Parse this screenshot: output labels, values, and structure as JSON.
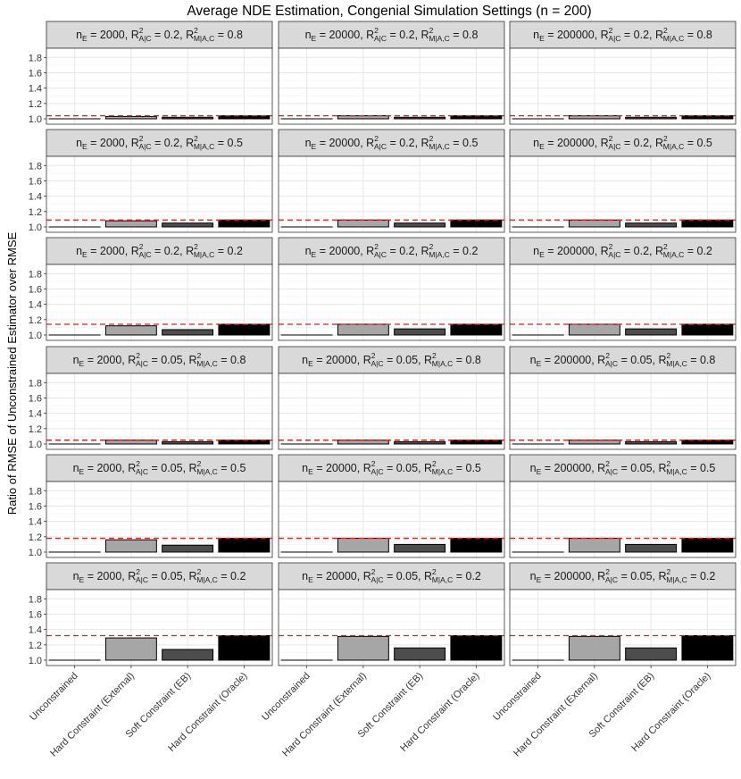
{
  "chart_data": {
    "type": "bar",
    "title": "Average NDE Estimation, Congenial Simulation Settings (n = 200)",
    "ylabel": "Ratio of RMSE of Unconstrained Estimator over RMSE",
    "xlabel": "",
    "categories": [
      "Unconstrained",
      "Hard Constraint (External)",
      "Soft Constraint (EB)",
      "Hard Constraint (Oracle)"
    ],
    "bar_colors": [
      "#ffffff",
      "#a6a6a6",
      "#4d4d4d",
      "#000000"
    ],
    "reference_line_color": "#e41a1c",
    "ylim": [
      0.93,
      1.92
    ],
    "yticks": [
      "1.0",
      "1.2",
      "1.4",
      "1.6",
      "1.8"
    ],
    "ytick_values": [
      1.0,
      1.2,
      1.4,
      1.6,
      1.8
    ],
    "grid": true,
    "strip_parts": {
      "n": "n",
      "n_sub": "E",
      "r": "R",
      "r_sup": "2",
      "sub_ac": "A|C",
      "sub_mac": "M|A,C",
      "eq": " = ",
      "sep": ", "
    },
    "panels": [
      {
        "row": 0,
        "col": 0,
        "nE": "2000",
        "r2_ac": "0.2",
        "r2_mac": "0.8",
        "values": [
          1.0,
          1.03,
          1.02,
          1.04
        ],
        "ref_line": 1.04
      },
      {
        "row": 0,
        "col": 1,
        "nE": "20000",
        "r2_ac": "0.2",
        "r2_mac": "0.8",
        "values": [
          1.0,
          1.04,
          1.02,
          1.04
        ],
        "ref_line": 1.04
      },
      {
        "row": 0,
        "col": 2,
        "nE": "200000",
        "r2_ac": "0.2",
        "r2_mac": "0.8",
        "values": [
          1.0,
          1.04,
          1.02,
          1.04
        ],
        "ref_line": 1.04
      },
      {
        "row": 1,
        "col": 0,
        "nE": "2000",
        "r2_ac": "0.2",
        "r2_mac": "0.5",
        "values": [
          1.0,
          1.08,
          1.05,
          1.09
        ],
        "ref_line": 1.09
      },
      {
        "row": 1,
        "col": 1,
        "nE": "20000",
        "r2_ac": "0.2",
        "r2_mac": "0.5",
        "values": [
          1.0,
          1.09,
          1.05,
          1.09
        ],
        "ref_line": 1.09
      },
      {
        "row": 1,
        "col": 2,
        "nE": "200000",
        "r2_ac": "0.2",
        "r2_mac": "0.5",
        "values": [
          1.0,
          1.09,
          1.05,
          1.09
        ],
        "ref_line": 1.09
      },
      {
        "row": 2,
        "col": 0,
        "nE": "2000",
        "r2_ac": "0.2",
        "r2_mac": "0.2",
        "values": [
          1.0,
          1.12,
          1.07,
          1.14
        ],
        "ref_line": 1.14
      },
      {
        "row": 2,
        "col": 1,
        "nE": "20000",
        "r2_ac": "0.2",
        "r2_mac": "0.2",
        "values": [
          1.0,
          1.14,
          1.08,
          1.14
        ],
        "ref_line": 1.14
      },
      {
        "row": 2,
        "col": 2,
        "nE": "200000",
        "r2_ac": "0.2",
        "r2_mac": "0.2",
        "values": [
          1.0,
          1.14,
          1.08,
          1.14
        ],
        "ref_line": 1.14
      },
      {
        "row": 3,
        "col": 0,
        "nE": "2000",
        "r2_ac": "0.05",
        "r2_mac": "0.8",
        "values": [
          1.0,
          1.05,
          1.03,
          1.05
        ],
        "ref_line": 1.05
      },
      {
        "row": 3,
        "col": 1,
        "nE": "20000",
        "r2_ac": "0.05",
        "r2_mac": "0.8",
        "values": [
          1.0,
          1.05,
          1.03,
          1.05
        ],
        "ref_line": 1.05
      },
      {
        "row": 3,
        "col": 2,
        "nE": "200000",
        "r2_ac": "0.05",
        "r2_mac": "0.8",
        "values": [
          1.0,
          1.05,
          1.03,
          1.05
        ],
        "ref_line": 1.05
      },
      {
        "row": 4,
        "col": 0,
        "nE": "2000",
        "r2_ac": "0.05",
        "r2_mac": "0.5",
        "values": [
          1.0,
          1.16,
          1.09,
          1.18
        ],
        "ref_line": 1.18
      },
      {
        "row": 4,
        "col": 1,
        "nE": "20000",
        "r2_ac": "0.05",
        "r2_mac": "0.5",
        "values": [
          1.0,
          1.18,
          1.1,
          1.18
        ],
        "ref_line": 1.18
      },
      {
        "row": 4,
        "col": 2,
        "nE": "200000",
        "r2_ac": "0.05",
        "r2_mac": "0.5",
        "values": [
          1.0,
          1.18,
          1.1,
          1.18
        ],
        "ref_line": 1.18
      },
      {
        "row": 5,
        "col": 0,
        "nE": "2000",
        "r2_ac": "0.05",
        "r2_mac": "0.2",
        "values": [
          1.0,
          1.29,
          1.14,
          1.32
        ],
        "ref_line": 1.32
      },
      {
        "row": 5,
        "col": 1,
        "nE": "20000",
        "r2_ac": "0.05",
        "r2_mac": "0.2",
        "values": [
          1.0,
          1.31,
          1.16,
          1.32
        ],
        "ref_line": 1.32
      },
      {
        "row": 5,
        "col": 2,
        "nE": "200000",
        "r2_ac": "0.05",
        "r2_mac": "0.2",
        "values": [
          1.0,
          1.31,
          1.16,
          1.32
        ],
        "ref_line": 1.32
      }
    ]
  }
}
